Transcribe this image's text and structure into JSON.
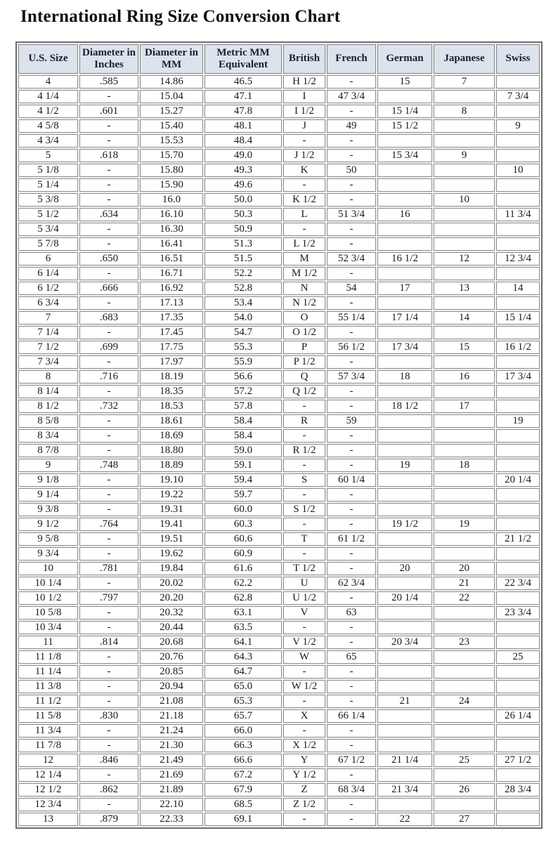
{
  "title": "International Ring Size Conversion Chart",
  "colors": {
    "header_bg": "#dce3ec",
    "grid_border": "#8c8c8c",
    "outer_border": "#6e6e6e",
    "text": "#1a1a1a"
  },
  "chart_data": {
    "type": "table",
    "title": "International Ring Size Conversion Chart",
    "columns": [
      "U.S. Size",
      "Diameter in Inches",
      "Diameter in MM",
      "Metric MM Equivalent",
      "British",
      "French",
      "German",
      "Japanese",
      "Swiss"
    ],
    "rows": [
      [
        "4",
        ".585",
        "14.86",
        "46.5",
        "H 1/2",
        "-",
        "15",
        "7",
        ""
      ],
      [
        "4 1/4",
        "-",
        "15.04",
        "47.1",
        "I",
        "47 3/4",
        "",
        "",
        "7 3/4"
      ],
      [
        "4 1/2",
        ".601",
        "15.27",
        "47.8",
        "I 1/2",
        "-",
        "15 1/4",
        "8",
        ""
      ],
      [
        "4 5/8",
        "-",
        "15.40",
        "48.1",
        "J",
        "49",
        "15 1/2",
        "",
        "9"
      ],
      [
        "4 3/4",
        "-",
        "15.53",
        "48.4",
        "-",
        "-",
        "",
        "",
        ""
      ],
      [
        "5",
        ".618",
        "15.70",
        "49.0",
        "J 1/2",
        "-",
        "15 3/4",
        "9",
        ""
      ],
      [
        "5 1/8",
        "-",
        "15.80",
        "49.3",
        "K",
        "50",
        "",
        "",
        "10"
      ],
      [
        "5 1/4",
        "-",
        "15.90",
        "49.6",
        "-",
        "-",
        "",
        "",
        ""
      ],
      [
        "5 3/8",
        "-",
        "16.0",
        "50.0",
        "K 1/2",
        "-",
        "",
        "10",
        ""
      ],
      [
        "5 1/2",
        ".634",
        "16.10",
        "50.3",
        "L",
        "51 3/4",
        "16",
        "",
        "11 3/4"
      ],
      [
        "5 3/4",
        "-",
        "16.30",
        "50.9",
        "-",
        "-",
        "",
        "",
        ""
      ],
      [
        "5 7/8",
        "-",
        "16.41",
        "51.3",
        "L 1/2",
        "-",
        "",
        "",
        ""
      ],
      [
        "6",
        ".650",
        "16.51",
        "51.5",
        "M",
        "52 3/4",
        "16 1/2",
        "12",
        "12 3/4"
      ],
      [
        "6 1/4",
        "-",
        "16.71",
        "52.2",
        "M 1/2",
        "-",
        "",
        "",
        ""
      ],
      [
        "6 1/2",
        ".666",
        "16.92",
        "52.8",
        "N",
        "54",
        "17",
        "13",
        "14"
      ],
      [
        "6 3/4",
        "-",
        "17.13",
        "53.4",
        "N 1/2",
        "-",
        "",
        "",
        ""
      ],
      [
        "7",
        ".683",
        "17.35",
        "54.0",
        "O",
        "55 1/4",
        "17 1/4",
        "14",
        "15 1/4"
      ],
      [
        "7 1/4",
        "-",
        "17.45",
        "54.7",
        "O 1/2",
        "-",
        "",
        "",
        ""
      ],
      [
        "7 1/2",
        ".699",
        "17.75",
        "55.3",
        "P",
        "56 1/2",
        "17 3/4",
        "15",
        "16 1/2"
      ],
      [
        "7 3/4",
        "-",
        "17.97",
        "55.9",
        "P 1/2",
        "-",
        "",
        "",
        ""
      ],
      [
        "8",
        ".716",
        "18.19",
        "56.6",
        "Q",
        "57 3/4",
        "18",
        "16",
        "17 3/4"
      ],
      [
        "8 1/4",
        "-",
        "18.35",
        "57.2",
        "Q 1/2",
        "-",
        "",
        "",
        ""
      ],
      [
        "8 1/2",
        ".732",
        "18.53",
        "57.8",
        "-",
        "-",
        "18 1/2",
        "17",
        ""
      ],
      [
        "8 5/8",
        "-",
        "18.61",
        "58.4",
        "R",
        "59",
        "",
        "",
        "19"
      ],
      [
        "8 3/4",
        "-",
        "18.69",
        "58.4",
        "-",
        "-",
        "",
        "",
        ""
      ],
      [
        "8 7/8",
        "-",
        "18.80",
        "59.0",
        "R 1/2",
        "-",
        "",
        "",
        ""
      ],
      [
        "9",
        ".748",
        "18.89",
        "59.1",
        "-",
        "-",
        "19",
        "18",
        ""
      ],
      [
        "9 1/8",
        "-",
        "19.10",
        "59.4",
        "S",
        "60 1/4",
        "",
        "",
        "20 1/4"
      ],
      [
        "9 1/4",
        "-",
        "19.22",
        "59.7",
        "-",
        "-",
        "",
        "",
        ""
      ],
      [
        "9 3/8",
        "-",
        "19.31",
        "60.0",
        "S 1/2",
        "-",
        "",
        "",
        ""
      ],
      [
        "9 1/2",
        ".764",
        "19.41",
        "60.3",
        "-",
        "-",
        "19 1/2",
        "19",
        ""
      ],
      [
        "9 5/8",
        "-",
        "19.51",
        "60.6",
        "T",
        "61 1/2",
        "",
        "",
        "21 1/2"
      ],
      [
        "9 3/4",
        "-",
        "19.62",
        "60.9",
        "-",
        "-",
        "",
        "",
        ""
      ],
      [
        "10",
        ".781",
        "19.84",
        "61.6",
        "T 1/2",
        "-",
        "20",
        "20",
        ""
      ],
      [
        "10 1/4",
        "-",
        "20.02",
        "62.2",
        "U",
        "62 3/4",
        "",
        "21",
        "22 3/4"
      ],
      [
        "10 1/2",
        ".797",
        "20.20",
        "62.8",
        "U 1/2",
        "-",
        "20 1/4",
        "22",
        ""
      ],
      [
        "10 5/8",
        "-",
        "20.32",
        "63.1",
        "V",
        "63",
        "",
        "",
        "23 3/4"
      ],
      [
        "10 3/4",
        "-",
        "20.44",
        "63.5",
        "-",
        "-",
        "",
        "",
        ""
      ],
      [
        "11",
        ".814",
        "20.68",
        "64.1",
        "V 1/2",
        "-",
        "20 3/4",
        "23",
        ""
      ],
      [
        "11 1/8",
        "-",
        "20.76",
        "64.3",
        "W",
        "65",
        "",
        "",
        "25"
      ],
      [
        "11 1/4",
        "-",
        "20.85",
        "64.7",
        "-",
        "-",
        "",
        "",
        ""
      ],
      [
        "11 3/8",
        "-",
        "20.94",
        "65.0",
        "W 1/2",
        "-",
        "",
        "",
        ""
      ],
      [
        "11 1/2",
        "-",
        "21.08",
        "65.3",
        "-",
        "-",
        "21",
        "24",
        ""
      ],
      [
        "11 5/8",
        ".830",
        "21.18",
        "65.7",
        "X",
        "66 1/4",
        "",
        "",
        "26 1/4"
      ],
      [
        "11 3/4",
        "-",
        "21.24",
        "66.0",
        "-",
        "-",
        "",
        "",
        ""
      ],
      [
        "11 7/8",
        "-",
        "21.30",
        "66.3",
        "X 1/2",
        "-",
        "",
        "",
        ""
      ],
      [
        "12",
        ".846",
        "21.49",
        "66.6",
        "Y",
        "67 1/2",
        "21 1/4",
        "25",
        "27 1/2"
      ],
      [
        "12 1/4",
        "-",
        "21.69",
        "67.2",
        "Y 1/2",
        "-",
        "",
        "",
        ""
      ],
      [
        "12 1/2",
        ".862",
        "21.89",
        "67.9",
        "Z",
        "68 3/4",
        "21 3/4",
        "26",
        "28 3/4"
      ],
      [
        "12 3/4",
        "-",
        "22.10",
        "68.5",
        "Z 1/2",
        "-",
        "",
        "",
        ""
      ],
      [
        "13",
        ".879",
        "22.33",
        "69.1",
        "-",
        "-",
        "22",
        "27",
        ""
      ]
    ]
  }
}
